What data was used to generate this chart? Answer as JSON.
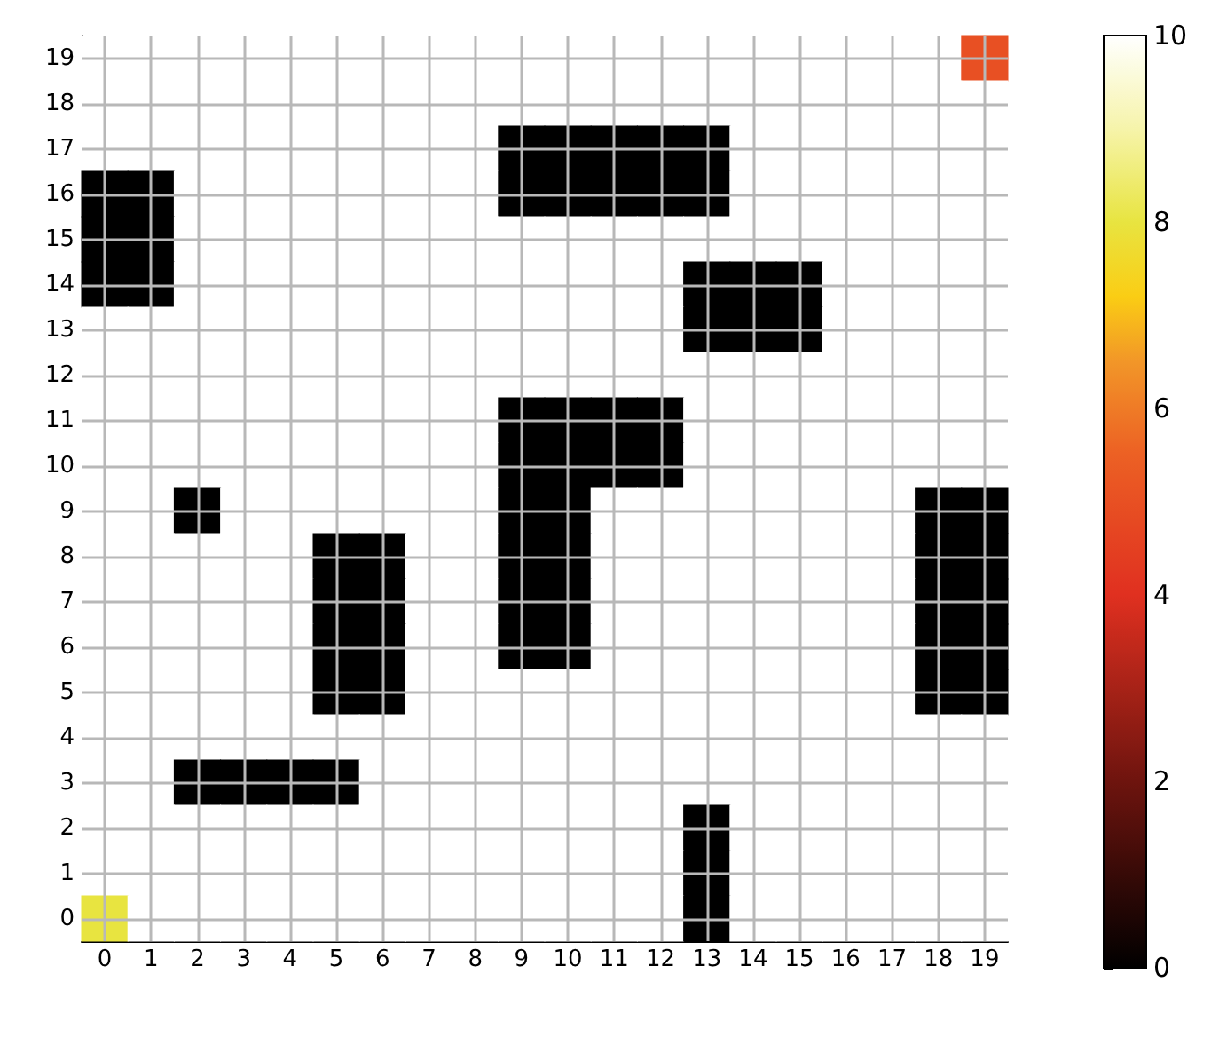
{
  "chart_data": {
    "type": "heatmap",
    "categories": [
      "0",
      "1",
      "2",
      "3",
      "4",
      "5",
      "6",
      "7",
      "8",
      "9",
      "10",
      "11",
      "12",
      "13",
      "14",
      "15",
      "16",
      "17",
      "18",
      "19"
    ],
    "y_categories": [
      "19",
      "18",
      "17",
      "16",
      "15",
      "14",
      "13",
      "12",
      "11",
      "10",
      "9",
      "8",
      "7",
      "6",
      "5",
      "4",
      "3",
      "2",
      "1",
      "0"
    ],
    "cells": [
      [
        10,
        10,
        10,
        10,
        10,
        10,
        10,
        10,
        10,
        10,
        10,
        10,
        10,
        10,
        10,
        10,
        10,
        10,
        10,
        5
      ],
      [
        10,
        10,
        10,
        10,
        10,
        10,
        10,
        10,
        10,
        10,
        10,
        10,
        10,
        10,
        10,
        10,
        10,
        10,
        10,
        10
      ],
      [
        10,
        10,
        10,
        10,
        10,
        10,
        10,
        10,
        10,
        0,
        0,
        0,
        0,
        0,
        10,
        10,
        10,
        10,
        10,
        10
      ],
      [
        0,
        0,
        10,
        10,
        10,
        10,
        10,
        10,
        10,
        0,
        0,
        0,
        0,
        0,
        10,
        10,
        10,
        10,
        10,
        10
      ],
      [
        0,
        0,
        10,
        10,
        10,
        10,
        10,
        10,
        10,
        10,
        10,
        10,
        10,
        10,
        10,
        10,
        10,
        10,
        10,
        10
      ],
      [
        0,
        0,
        10,
        10,
        10,
        10,
        10,
        10,
        10,
        10,
        10,
        10,
        10,
        0,
        0,
        0,
        10,
        10,
        10,
        10
      ],
      [
        10,
        10,
        10,
        10,
        10,
        10,
        10,
        10,
        10,
        10,
        10,
        10,
        10,
        0,
        0,
        0,
        10,
        10,
        10,
        10
      ],
      [
        10,
        10,
        10,
        10,
        10,
        10,
        10,
        10,
        10,
        10,
        10,
        10,
        10,
        10,
        10,
        10,
        10,
        10,
        10,
        10
      ],
      [
        10,
        10,
        10,
        10,
        10,
        10,
        10,
        10,
        10,
        0,
        0,
        0,
        0,
        10,
        10,
        10,
        10,
        10,
        10,
        10
      ],
      [
        10,
        10,
        10,
        10,
        10,
        10,
        10,
        10,
        10,
        0,
        0,
        0,
        0,
        10,
        10,
        10,
        10,
        10,
        10,
        10
      ],
      [
        10,
        10,
        0,
        10,
        10,
        10,
        10,
        10,
        10,
        0,
        0,
        10,
        10,
        10,
        10,
        10,
        10,
        10,
        0,
        0
      ],
      [
        10,
        10,
        10,
        10,
        10,
        0,
        0,
        10,
        10,
        0,
        0,
        10,
        10,
        10,
        10,
        10,
        10,
        10,
        0,
        0
      ],
      [
        10,
        10,
        10,
        10,
        10,
        0,
        0,
        10,
        10,
        0,
        0,
        10,
        10,
        10,
        10,
        10,
        10,
        10,
        0,
        0
      ],
      [
        10,
        10,
        10,
        10,
        10,
        0,
        0,
        10,
        10,
        0,
        0,
        10,
        10,
        10,
        10,
        10,
        10,
        10,
        0,
        0
      ],
      [
        10,
        10,
        10,
        10,
        10,
        0,
        0,
        10,
        10,
        10,
        10,
        10,
        10,
        10,
        10,
        10,
        10,
        10,
        0,
        0
      ],
      [
        10,
        10,
        10,
        10,
        10,
        10,
        10,
        10,
        10,
        10,
        10,
        10,
        10,
        10,
        10,
        10,
        10,
        10,
        10,
        10
      ],
      [
        10,
        10,
        0,
        0,
        0,
        0,
        10,
        10,
        10,
        10,
        10,
        10,
        10,
        10,
        10,
        10,
        10,
        10,
        10,
        10
      ],
      [
        10,
        10,
        10,
        10,
        10,
        10,
        10,
        10,
        10,
        10,
        10,
        10,
        10,
        0,
        10,
        10,
        10,
        10,
        10,
        10
      ],
      [
        10,
        10,
        10,
        10,
        10,
        10,
        10,
        10,
        10,
        10,
        10,
        10,
        10,
        0,
        10,
        10,
        10,
        10,
        10,
        10
      ],
      [
        8,
        10,
        10,
        10,
        10,
        10,
        10,
        10,
        10,
        10,
        10,
        10,
        10,
        0,
        10,
        10,
        10,
        10,
        10,
        10
      ]
    ],
    "clim": [
      0,
      10
    ],
    "cticks": [
      0,
      2,
      4,
      6,
      8,
      10
    ],
    "grid": true
  }
}
